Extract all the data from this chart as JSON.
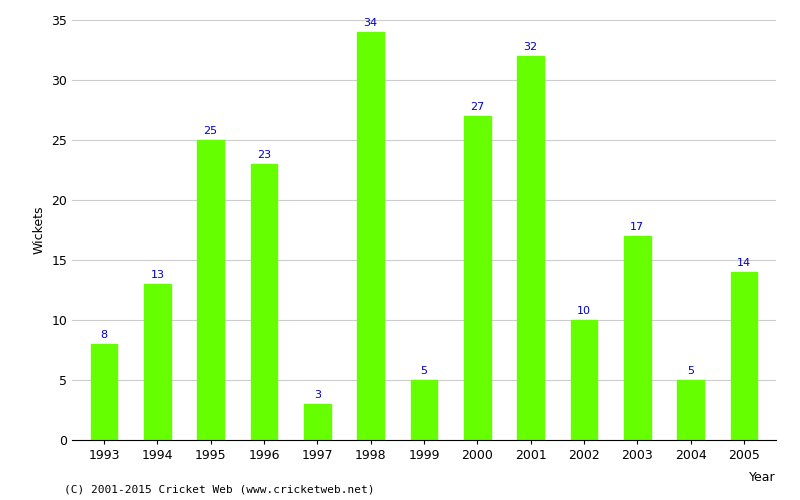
{
  "years": [
    "1993",
    "1994",
    "1995",
    "1996",
    "1997",
    "1998",
    "1999",
    "2000",
    "2001",
    "2002",
    "2003",
    "2004",
    "2005"
  ],
  "values": [
    8,
    13,
    25,
    23,
    3,
    34,
    5,
    27,
    32,
    10,
    17,
    5,
    14
  ],
  "bar_color": "#66FF00",
  "label_color": "#0000CC",
  "xlabel": "Year",
  "ylabel": "Wickets",
  "ylim": [
    0,
    35
  ],
  "yticks": [
    0,
    5,
    10,
    15,
    20,
    25,
    30,
    35
  ],
  "grid_color": "#cccccc",
  "background_color": "#ffffff",
  "caption": "(C) 2001-2015 Cricket Web (www.cricketweb.net)",
  "label_fontsize": 8,
  "axis_fontsize": 9,
  "caption_fontsize": 8,
  "bar_width": 0.5
}
